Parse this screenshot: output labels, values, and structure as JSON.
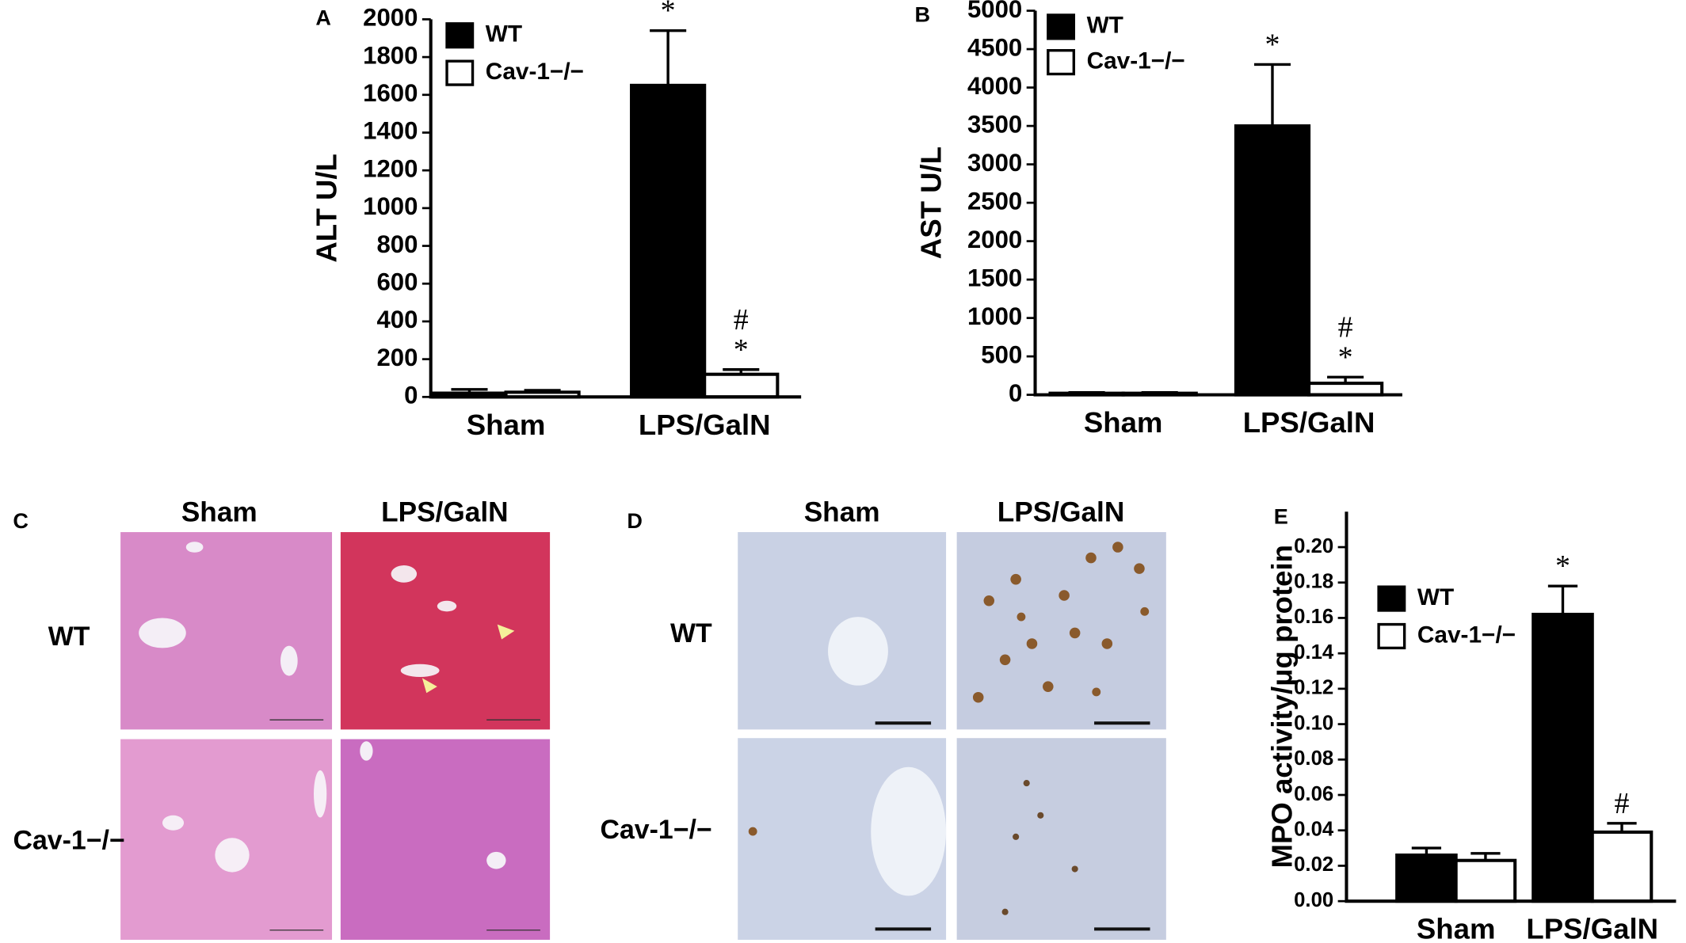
{
  "chart_data": [
    {
      "type": "bar",
      "panel_label": "A",
      "y_label": "ALT U/L",
      "categories": [
        "Sham",
        "LPS/GalN"
      ],
      "series": [
        {
          "name": "WT",
          "color": "#000000",
          "values": [
            20,
            1650
          ],
          "errors": [
            20,
            290
          ],
          "markers": [
            null,
            [
              "*"
            ]
          ]
        },
        {
          "name": "Cav-1−/−",
          "color": "#ffffff",
          "values": [
            25,
            120
          ],
          "errors": [
            10,
            25
          ],
          "markers": [
            null,
            [
              "#",
              "*"
            ]
          ]
        }
      ],
      "ylim": [
        0,
        2000
      ],
      "yticks": [
        0,
        200,
        400,
        600,
        800,
        1000,
        1200,
        1400,
        1600,
        1800,
        2000
      ]
    },
    {
      "type": "bar",
      "panel_label": "B",
      "y_label": "AST U/L",
      "categories": [
        "Sham",
        "LPS/GalN"
      ],
      "series": [
        {
          "name": "WT",
          "color": "#000000",
          "values": [
            20,
            3500
          ],
          "errors": [
            10,
            800
          ],
          "markers": [
            null,
            [
              "*"
            ]
          ]
        },
        {
          "name": "Cav-1−/−",
          "color": "#ffffff",
          "values": [
            20,
            150
          ],
          "errors": [
            10,
            80
          ],
          "markers": [
            null,
            [
              "#",
              "*"
            ]
          ]
        }
      ],
      "ylim": [
        0,
        5000
      ],
      "yticks": [
        0,
        500,
        1000,
        1500,
        2000,
        2500,
        3000,
        3500,
        4000,
        4500,
        5000
      ]
    },
    {
      "type": "bar",
      "panel_label": "E",
      "y_label": "MPO activity/μg protein",
      "categories": [
        "Sham",
        "LPS/GalN"
      ],
      "series": [
        {
          "name": "WT",
          "color": "#000000",
          "values": [
            0.026,
            0.162
          ],
          "errors": [
            0.004,
            0.016
          ],
          "markers": [
            null,
            [
              "*"
            ]
          ]
        },
        {
          "name": "Cav-1−/−",
          "color": "#ffffff",
          "values": [
            0.023,
            0.039
          ],
          "errors": [
            0.004,
            0.005
          ],
          "markers": [
            null,
            [
              "#"
            ]
          ]
        }
      ],
      "ylim": [
        0,
        0.22
      ],
      "yticks": [
        {
          "value": 0,
          "label": "0.00"
        },
        {
          "value": 0.02,
          "label": "0.02"
        },
        {
          "value": 0.04,
          "label": "0.04"
        },
        {
          "value": 0.06,
          "label": "0.06"
        },
        {
          "value": 0.08,
          "label": "0.08"
        },
        {
          "value": 0.1,
          "label": "0.10"
        },
        {
          "value": 0.12,
          "label": "0.12"
        },
        {
          "value": 0.14,
          "label": "0.14"
        },
        {
          "value": 0.16,
          "label": "0.16"
        },
        {
          "value": 0.18,
          "label": "0.18"
        },
        {
          "value": 0.2,
          "label": "0.20"
        }
      ]
    }
  ],
  "image_panels": [
    {
      "label": "C",
      "columns": [
        "Sham",
        "LPS/GalN"
      ],
      "rows": [
        "WT",
        "Cav-1−/−"
      ]
    },
    {
      "label": "D",
      "columns": [
        "Sham",
        "LPS/GalN"
      ],
      "rows": [
        "WT",
        "Cav-1−/−"
      ]
    }
  ]
}
